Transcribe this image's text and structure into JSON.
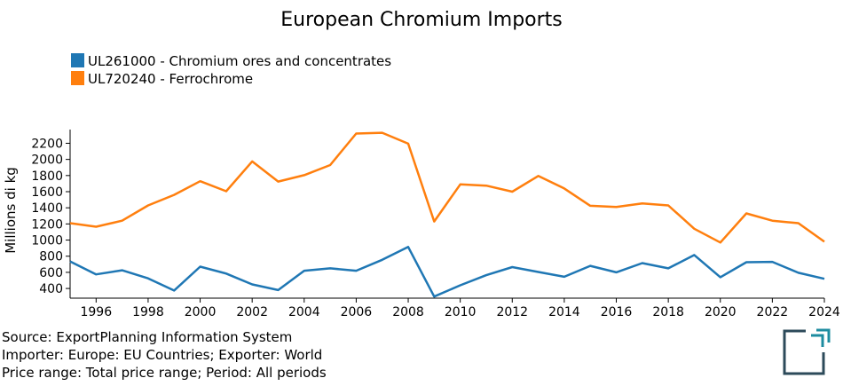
{
  "chart_data": {
    "type": "line",
    "title": "European Chromium Imports",
    "ylabel": "Millions di kg",
    "xlabel": "",
    "x": [
      1995,
      1996,
      1997,
      1998,
      1999,
      2000,
      2001,
      2002,
      2003,
      2004,
      2005,
      2006,
      2007,
      2008,
      2009,
      2010,
      2011,
      2012,
      2013,
      2014,
      2015,
      2016,
      2017,
      2018,
      2019,
      2020,
      2021,
      2022,
      2023,
      2024
    ],
    "xticks": [
      "1996",
      "1998",
      "2000",
      "2002",
      "2004",
      "2006",
      "2008",
      "2010",
      "2012",
      "2014",
      "2016",
      "2018",
      "2020",
      "2022",
      "2024"
    ],
    "yticks": [
      "400",
      "600",
      "800",
      "1000",
      "1200",
      "1400",
      "1600",
      "1800",
      "2000",
      "2200"
    ],
    "xlim": [
      1995,
      2024
    ],
    "ylim": [
      280,
      2370
    ],
    "grid": false,
    "legend_position": "top-left",
    "series": [
      {
        "name": "UL261000 - Chromium ores and concentrates",
        "color": "#1f77b4",
        "values": [
          735,
          575,
          625,
          525,
          375,
          670,
          585,
          450,
          380,
          620,
          650,
          620,
          755,
          915,
          300,
          440,
          565,
          665,
          605,
          545,
          680,
          600,
          715,
          650,
          815,
          540,
          725,
          730,
          595,
          520
        ]
      },
      {
        "name": "UL720240 - Ferrochrome",
        "color": "#ff7f0e",
        "values": [
          1210,
          1165,
          1240,
          1430,
          1560,
          1730,
          1605,
          1975,
          1725,
          1805,
          1930,
          2320,
          2330,
          2195,
          1230,
          1690,
          1675,
          1600,
          1795,
          1640,
          1425,
          1410,
          1455,
          1430,
          1140,
          970,
          1330,
          1240,
          1210,
          980
        ]
      }
    ]
  },
  "footer": {
    "source": "Source: ExportPlanning Information System",
    "importer": "Importer: Europe: EU Countries; Exporter: World",
    "price": "Price range: Total price range; Period: All periods"
  },
  "logo": {
    "colors": {
      "teal": "#1e8ca0",
      "dark": "#2c4a5a"
    }
  }
}
